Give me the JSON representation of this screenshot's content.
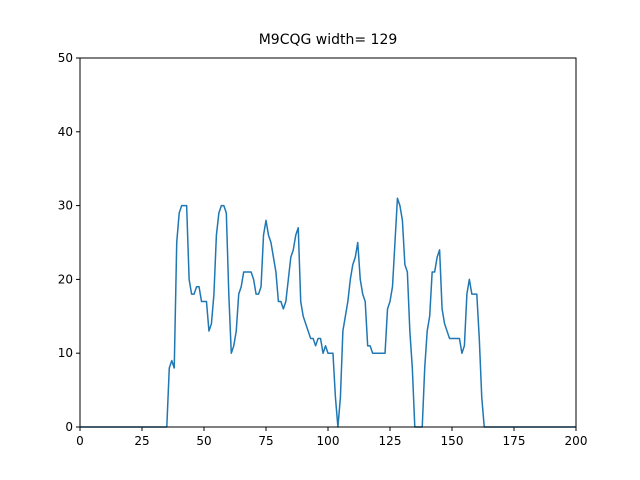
{
  "chart_data": {
    "type": "line",
    "title": "M9CQG width= 129",
    "x": [
      0,
      35,
      36,
      37,
      38,
      39,
      40,
      41,
      42,
      43,
      44,
      45,
      46,
      47,
      48,
      49,
      50,
      51,
      52,
      53,
      54,
      55,
      56,
      57,
      58,
      59,
      60,
      61,
      62,
      63,
      64,
      65,
      66,
      67,
      68,
      69,
      70,
      71,
      72,
      73,
      74,
      75,
      76,
      77,
      78,
      79,
      80,
      81,
      82,
      83,
      84,
      85,
      86,
      87,
      88,
      89,
      90,
      91,
      92,
      93,
      94,
      95,
      96,
      97,
      98,
      99,
      100,
      101,
      102,
      103,
      104,
      105,
      106,
      107,
      108,
      109,
      110,
      111,
      112,
      113,
      114,
      115,
      116,
      117,
      118,
      119,
      120,
      121,
      122,
      123,
      124,
      125,
      126,
      127,
      128,
      129,
      130,
      131,
      132,
      133,
      134,
      135,
      136,
      137,
      138,
      139,
      140,
      141,
      142,
      143,
      144,
      145,
      146,
      147,
      148,
      149,
      150,
      151,
      152,
      153,
      154,
      155,
      156,
      157,
      158,
      159,
      160,
      161,
      162,
      163,
      200
    ],
    "series": [
      {
        "color": "#1f77b4",
        "values": [
          0,
          0,
          8,
          9,
          8,
          25,
          29,
          30,
          30,
          30,
          20,
          18,
          18,
          19,
          19,
          17,
          17,
          17,
          13,
          14,
          18,
          26,
          29,
          30,
          30,
          29,
          18,
          10,
          11,
          13,
          18,
          19,
          21,
          21,
          21,
          21,
          20,
          18,
          18,
          19,
          26,
          28,
          26,
          25,
          23,
          21,
          17,
          17,
          16,
          17,
          20,
          23,
          24,
          26,
          27,
          17,
          15,
          14,
          13,
          12,
          12,
          11,
          12,
          12,
          10,
          11,
          10,
          10,
          10,
          4,
          0,
          4,
          13,
          15,
          17,
          20,
          22,
          23,
          25,
          20,
          18,
          17,
          11,
          11,
          10,
          10,
          10,
          10,
          10,
          10,
          16,
          17,
          19,
          25,
          31,
          30,
          28,
          22,
          21,
          13,
          8,
          0,
          0,
          0,
          0,
          8,
          13,
          15,
          21,
          21,
          23,
          24,
          16,
          14,
          13,
          12,
          12,
          12,
          12,
          12,
          10,
          11,
          18,
          20,
          18,
          18,
          18,
          12,
          4,
          0,
          0
        ]
      }
    ],
    "xlim": [
      0,
      200
    ],
    "ylim": [
      0,
      50
    ],
    "xticks": [
      0,
      25,
      50,
      75,
      100,
      125,
      150,
      175,
      200
    ],
    "yticks": [
      0,
      10,
      20,
      30,
      40,
      50
    ]
  }
}
